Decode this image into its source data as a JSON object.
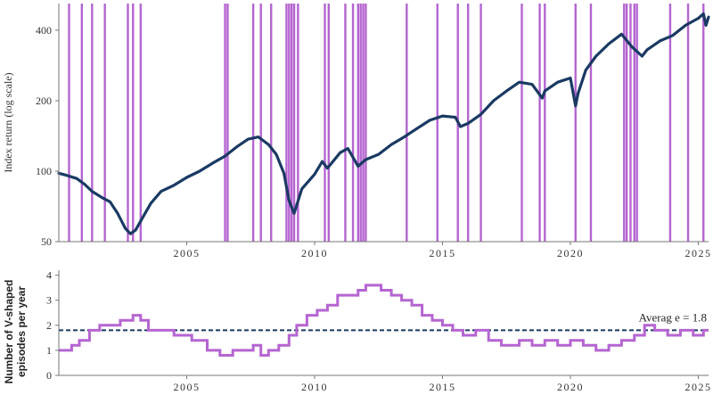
{
  "chart_data": [
    {
      "type": "line",
      "title": "",
      "xlabel": "",
      "ylabel": "Index return (log scale)",
      "y_scale": "log",
      "ylim": [
        50,
        520
      ],
      "xlim": [
        2000.0,
        2025.4
      ],
      "yticks": [
        {
          "value": 50,
          "label": "50"
        },
        {
          "value": 100,
          "label": "100"
        },
        {
          "value": 200,
          "label": "200"
        },
        {
          "value": 400,
          "label": "400"
        }
      ],
      "grid": false,
      "colors": {
        "series": "#1a3a63",
        "episode": "#b565d1",
        "axis": "#777777"
      },
      "series": [
        {
          "name": "",
          "x": [
            2000.0,
            2000.3,
            2000.7,
            2001.0,
            2001.3,
            2001.7,
            2002.0,
            2002.3,
            2002.6,
            2002.8,
            2003.0,
            2003.3,
            2003.6,
            2004.0,
            2004.5,
            2005.0,
            2005.5,
            2006.0,
            2006.5,
            2007.0,
            2007.4,
            2007.8,
            2008.2,
            2008.5,
            2008.8,
            2009.0,
            2009.2,
            2009.5,
            2010.0,
            2010.3,
            2010.5,
            2011.0,
            2011.3,
            2011.7,
            2012.0,
            2012.5,
            2013.0,
            2013.5,
            2014.0,
            2014.5,
            2015.0,
            2015.5,
            2015.7,
            2016.0,
            2016.5,
            2017.0,
            2017.5,
            2018.0,
            2018.5,
            2018.9,
            2019.0,
            2019.5,
            2020.0,
            2020.2,
            2020.3,
            2020.6,
            2021.0,
            2021.5,
            2022.0,
            2022.4,
            2022.8,
            2023.0,
            2023.5,
            2024.0,
            2024.5,
            2025.0,
            2025.2,
            2025.3,
            2025.4
          ],
          "values": [
            98,
            96,
            93,
            88,
            82,
            77,
            74,
            66,
            57,
            54,
            56,
            64,
            73,
            82,
            87,
            94,
            100,
            108,
            116,
            128,
            137,
            140,
            130,
            118,
            98,
            75,
            66,
            84,
            97,
            110,
            103,
            120,
            125,
            105,
            112,
            118,
            130,
            140,
            152,
            165,
            172,
            170,
            155,
            160,
            175,
            200,
            220,
            240,
            235,
            205,
            220,
            240,
            250,
            190,
            215,
            270,
            310,
            350,
            385,
            340,
            310,
            330,
            360,
            380,
            420,
            450,
            470,
            420,
            455
          ]
        }
      ],
      "episode_x": [
        2000.4,
        2000.9,
        2001.3,
        2001.8,
        2002.7,
        2002.9,
        2003.2,
        2006.5,
        2006.6,
        2007.6,
        2007.9,
        2008.3,
        2008.9,
        2009.0,
        2009.1,
        2009.2,
        2009.35,
        2010.4,
        2010.55,
        2011.2,
        2011.5,
        2011.7,
        2011.8,
        2011.9,
        2012.0,
        2013.6,
        2014.8,
        2015.6,
        2016.0,
        2016.5,
        2018.1,
        2018.8,
        2019.0,
        2020.2,
        2020.8,
        2022.1,
        2022.2,
        2022.35,
        2022.5,
        2022.6,
        2023.9,
        2024.6,
        2025.2
      ]
    },
    {
      "type": "line",
      "title": "",
      "xlabel": "",
      "ylabel": "Number of V-shaped episodes per year",
      "ylim": [
        0,
        4.2
      ],
      "xlim": [
        2000.0,
        2025.4
      ],
      "yticks": [
        {
          "value": 0,
          "label": "0"
        },
        {
          "value": 1,
          "label": "1"
        },
        {
          "value": 2,
          "label": "2"
        },
        {
          "value": 3,
          "label": "3"
        },
        {
          "value": 4,
          "label": "4"
        }
      ],
      "xticks": [
        {
          "value": 2005,
          "label": "2005"
        },
        {
          "value": 2010,
          "label": "2010"
        },
        {
          "value": 2015,
          "label": "2015"
        },
        {
          "value": 2020,
          "label": "2020"
        },
        {
          "value": 2025,
          "label": "2025"
        }
      ],
      "grid": false,
      "colors": {
        "series": "#b565d1",
        "average": "#1a3a63",
        "axis": "#777777"
      },
      "series": [
        {
          "name": "",
          "x": [
            2000.0,
            2000.5,
            2000.8,
            2001.2,
            2001.6,
            2002.4,
            2002.9,
            2003.2,
            2003.5,
            2004.0,
            2004.5,
            2005.2,
            2005.8,
            2006.3,
            2006.8,
            2007.2,
            2007.6,
            2007.9,
            2008.2,
            2008.6,
            2009.0,
            2009.3,
            2009.7,
            2010.1,
            2010.5,
            2010.9,
            2011.2,
            2011.7,
            2012.0,
            2012.6,
            2013.0,
            2013.4,
            2013.8,
            2014.2,
            2014.6,
            2015.0,
            2015.4,
            2015.8,
            2016.3,
            2016.8,
            2017.3,
            2018.0,
            2018.5,
            2019.0,
            2019.5,
            2020.0,
            2020.5,
            2021.0,
            2021.5,
            2022.0,
            2022.5,
            2022.9,
            2023.3,
            2023.8,
            2024.3,
            2024.8,
            2025.2,
            2025.4
          ],
          "values": [
            1.0,
            1.2,
            1.4,
            1.8,
            2.0,
            2.2,
            2.4,
            2.2,
            1.8,
            1.8,
            1.6,
            1.4,
            1.0,
            0.8,
            1.0,
            1.0,
            1.2,
            0.8,
            1.0,
            1.2,
            1.6,
            2.0,
            2.4,
            2.6,
            2.8,
            3.2,
            3.2,
            3.4,
            3.6,
            3.4,
            3.2,
            3.0,
            2.8,
            2.4,
            2.2,
            2.0,
            1.8,
            1.6,
            1.8,
            1.4,
            1.2,
            1.4,
            1.2,
            1.4,
            1.2,
            1.4,
            1.2,
            1.0,
            1.2,
            1.4,
            1.6,
            2.0,
            1.8,
            1.6,
            1.8,
            1.6,
            1.8,
            1.8
          ]
        }
      ],
      "average": {
        "value": 1.8,
        "label": "Averag e = 1.8"
      }
    }
  ]
}
